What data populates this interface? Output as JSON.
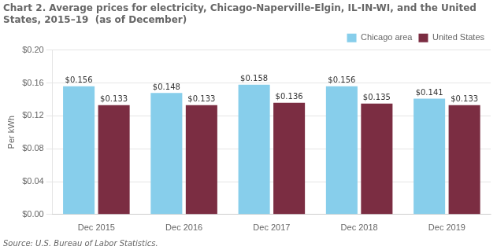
{
  "chart_data": {
    "type": "bar",
    "title": [
      "Chart 2. Average prices for electricity, Chicago-Naperville-Elgin, IL-IN-WI, and the United",
      "States, 2015–19  (as of December)"
    ],
    "ylabel": "Per kWh",
    "source": "Source: U.S. Bureau of Labor Statistics.",
    "categories": [
      "Dec 2015",
      "Dec 2016",
      "Dec 2017",
      "Dec 2018",
      "Dec 2019"
    ],
    "series": [
      {
        "name": "Chicago area",
        "color": "#87CEEB",
        "values": [
          0.156,
          0.148,
          0.158,
          0.156,
          0.141
        ],
        "value_labels": [
          "$0.156",
          "$0.148",
          "$0.158",
          "$0.156",
          "$0.141"
        ]
      },
      {
        "name": "United States",
        "color": "#7B2D42",
        "values": [
          0.133,
          0.133,
          0.136,
          0.135,
          0.133
        ],
        "value_labels": [
          "$0.133",
          "$0.133",
          "$0.136",
          "$0.135",
          "$0.133"
        ]
      }
    ],
    "ylim": [
      0.0,
      0.2
    ],
    "yticks": [
      {
        "value": 0.0,
        "label": "$0.00"
      },
      {
        "value": 0.04,
        "label": "$0.04"
      },
      {
        "value": 0.08,
        "label": "$0.08"
      },
      {
        "value": 0.12,
        "label": "$0.12"
      },
      {
        "value": 0.16,
        "label": "$0.16"
      },
      {
        "value": 0.2,
        "label": "$0.20"
      }
    ],
    "grid": true,
    "legend": "upper right",
    "data_labels": true
  }
}
